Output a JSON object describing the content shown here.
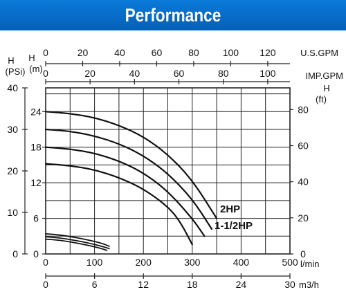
{
  "header": {
    "title": "Performance"
  },
  "colors": {
    "banner": "#0a6fcf",
    "banner_text": "#ffffff",
    "grid": "#222222",
    "curve": "#111111",
    "background": "#ffffff"
  },
  "chart_data": {
    "type": "line",
    "title": "",
    "grid": true,
    "axes": {
      "x_bottom_1": {
        "label": "l/min",
        "range": [
          0,
          500
        ],
        "ticks": [
          0,
          100,
          200,
          300,
          400,
          500
        ]
      },
      "x_bottom_2": {
        "label": "m3/h",
        "range": [
          0,
          30
        ],
        "ticks": [
          0,
          6,
          12,
          18,
          24,
          30
        ]
      },
      "x_top_1": {
        "label": "U.S.GPM",
        "range": [
          0,
          132
        ],
        "ticks": [
          0,
          20,
          40,
          60,
          80,
          100,
          120
        ]
      },
      "x_top_2": {
        "label": "IMP.GPM",
        "range": [
          0,
          110
        ],
        "ticks": [
          0,
          20,
          40,
          60,
          80,
          100
        ]
      },
      "y_left_psi": {
        "label_line1": "H",
        "label_line2": "(PSi)",
        "range": [
          0,
          40
        ],
        "ticks": [
          0,
          10,
          20,
          30,
          40
        ]
      },
      "y_left_m": {
        "label_line1": "H",
        "label_line2": "(m)",
        "range": [
          0,
          28
        ],
        "ticks": [
          0,
          6,
          12,
          18,
          24
        ]
      },
      "y_right_ft": {
        "label_line1": "H",
        "label_line2": "(ft)",
        "range": [
          0,
          92
        ],
        "ticks": [
          0,
          20,
          40,
          60,
          80
        ]
      }
    },
    "series_units": {
      "x": "l/min",
      "y": "m"
    },
    "series": [
      {
        "name": "2HP",
        "points": [
          [
            0,
            24
          ],
          [
            50,
            23.7
          ],
          [
            100,
            23
          ],
          [
            150,
            21.7
          ],
          [
            200,
            19.8
          ],
          [
            250,
            16.8
          ],
          [
            300,
            12.5
          ],
          [
            350,
            6
          ]
        ]
      },
      {
        "name": "",
        "points": [
          [
            0,
            21
          ],
          [
            50,
            20.7
          ],
          [
            100,
            19.9
          ],
          [
            150,
            18.6
          ],
          [
            200,
            16.6
          ],
          [
            250,
            13.6
          ],
          [
            300,
            9.3
          ],
          [
            340,
            4.2
          ]
        ]
      },
      {
        "name": "1-1/2HP",
        "points": [
          [
            0,
            18
          ],
          [
            50,
            17.7
          ],
          [
            100,
            17
          ],
          [
            150,
            15.7
          ],
          [
            200,
            13.7
          ],
          [
            250,
            10.6
          ],
          [
            300,
            6
          ],
          [
            325,
            3
          ]
        ]
      },
      {
        "name": "",
        "points": [
          [
            0,
            15.2
          ],
          [
            50,
            14.9
          ],
          [
            100,
            14.2
          ],
          [
            150,
            12.9
          ],
          [
            200,
            11
          ],
          [
            250,
            8
          ],
          [
            275,
            5.5
          ],
          [
            300,
            1.6
          ]
        ]
      },
      {
        "name": "",
        "points": [
          [
            0,
            3.4
          ],
          [
            30,
            3.2
          ],
          [
            60,
            2.8
          ],
          [
            90,
            2.3
          ],
          [
            115,
            1.8
          ],
          [
            130,
            1.3
          ]
        ]
      },
      {
        "name": "",
        "points": [
          [
            0,
            2.9
          ],
          [
            30,
            2.7
          ],
          [
            60,
            2.3
          ],
          [
            90,
            1.8
          ],
          [
            115,
            1.3
          ],
          [
            130,
            0.9
          ]
        ]
      },
      {
        "name": "",
        "points": [
          [
            0,
            2.5
          ],
          [
            30,
            2.3
          ],
          [
            60,
            1.9
          ],
          [
            90,
            1.4
          ],
          [
            115,
            0.9
          ],
          [
            125,
            0.6
          ]
        ]
      }
    ]
  }
}
